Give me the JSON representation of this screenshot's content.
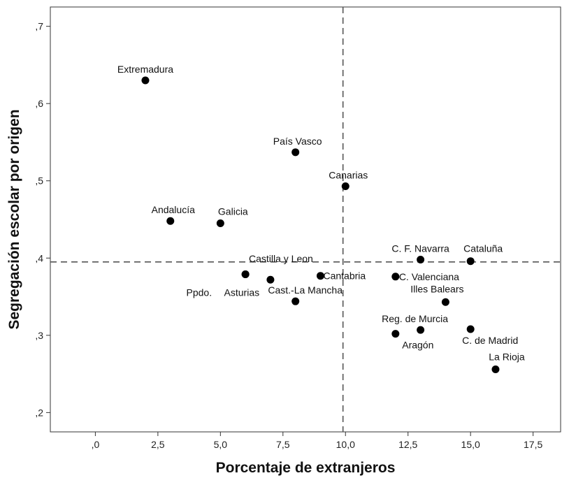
{
  "chart_data": {
    "type": "scatter",
    "title": "",
    "xlabel": "Porcentaje de extranjeros",
    "ylabel": "Segregación escolar por origen",
    "xlim": [
      -1.8,
      18.6
    ],
    "ylim": [
      0.175,
      0.725
    ],
    "x_ticks": [
      {
        "value": 0,
        "label": ",0"
      },
      {
        "value": 2.5,
        "label": "2,5"
      },
      {
        "value": 5,
        "label": "5,0"
      },
      {
        "value": 7.5,
        "label": "7,5"
      },
      {
        "value": 10,
        "label": "10,0"
      },
      {
        "value": 12.5,
        "label": "12,5"
      },
      {
        "value": 15,
        "label": "15,0"
      },
      {
        "value": 17.5,
        "label": "17,5"
      }
    ],
    "y_ticks": [
      {
        "value": 0.2,
        "label": ",2"
      },
      {
        "value": 0.3,
        "label": ",3"
      },
      {
        "value": 0.4,
        "label": ",4"
      },
      {
        "value": 0.5,
        "label": ",5"
      },
      {
        "value": 0.6,
        "label": ",6"
      },
      {
        "value": 0.7,
        "label": ",7"
      }
    ],
    "reference_lines": {
      "x": 9.9,
      "y": 0.395
    },
    "grid": false,
    "points": [
      {
        "label": "Extremadura",
        "x": 2.0,
        "y": 0.63
      },
      {
        "label": "País Vasco",
        "x": 8.0,
        "y": 0.537
      },
      {
        "label": "Canarias",
        "x": 10.0,
        "y": 0.493
      },
      {
        "label": "Andalucía",
        "x": 3.0,
        "y": 0.448
      },
      {
        "label": "Galicia",
        "x": 5.0,
        "y": 0.445
      },
      {
        "label": "Castilla y Leon",
        "x": 7.0,
        "y": 0.372
      },
      {
        "label": "Ppdo.",
        "x": 6.0,
        "y": 0.379
      },
      {
        "label": "Asturias",
        "x": 6.0,
        "y": 0.379
      },
      {
        "label": "Cantabria",
        "x": 9.0,
        "y": 0.377
      },
      {
        "label": "Cast.-La Mancha",
        "x": 8.0,
        "y": 0.344
      },
      {
        "label": "C. F. Navarra",
        "x": 13.0,
        "y": 0.398
      },
      {
        "label": "Cataluña",
        "x": 15.0,
        "y": 0.396
      },
      {
        "label": "C. Valenciana",
        "x": 12.0,
        "y": 0.376
      },
      {
        "label": "Illes Balears",
        "x": 14.0,
        "y": 0.343
      },
      {
        "label": "Reg. de Murcia",
        "x": 13.0,
        "y": 0.307
      },
      {
        "label": "Aragón",
        "x": 12.0,
        "y": 0.302
      },
      {
        "label": "C. de Madrid",
        "x": 15.0,
        "y": 0.308
      },
      {
        "label": "La Rioja",
        "x": 16.0,
        "y": 0.256
      }
    ]
  }
}
